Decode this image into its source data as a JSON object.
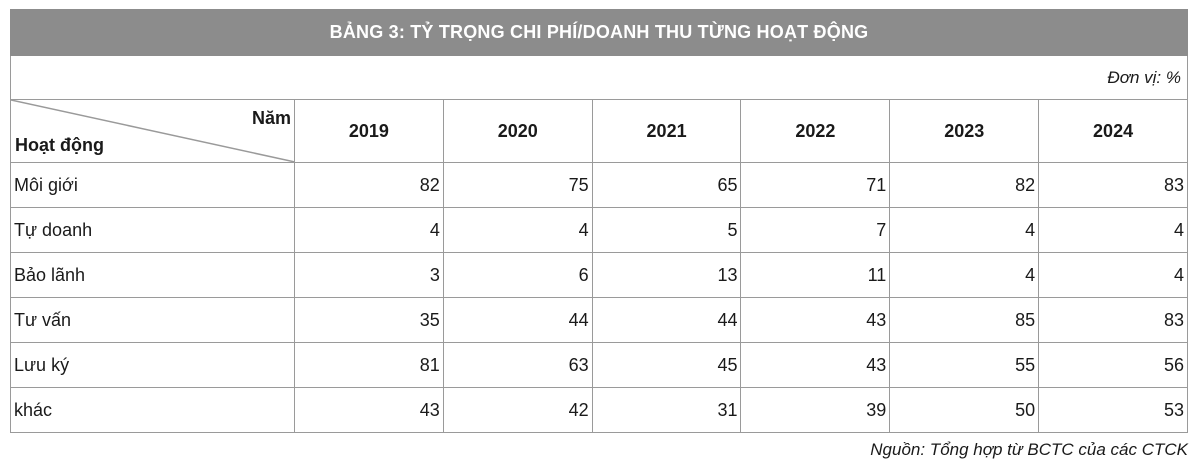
{
  "title": "BẢNG 3: TỶ TRỌNG CHI PHÍ/DOANH THU TỪNG HOẠT ĐỘNG",
  "unit": "Đơn vị: %",
  "header": {
    "corner_top": "Năm",
    "corner_bottom": "Hoạt động",
    "years": [
      "2019",
      "2020",
      "2021",
      "2022",
      "2023",
      "2024"
    ]
  },
  "rows": [
    {
      "label": "Môi giới",
      "values": [
        "82",
        "75",
        "65",
        "71",
        "82",
        "83"
      ]
    },
    {
      "label": "Tự doanh",
      "values": [
        "4",
        "4",
        "5",
        "7",
        "4",
        "4"
      ]
    },
    {
      "label": "Bảo lãnh",
      "values": [
        "3",
        "6",
        "13",
        "11",
        "4",
        "4"
      ]
    },
    {
      "label": "Tư vấn",
      "values": [
        "35",
        "44",
        "44",
        "43",
        "85",
        "83"
      ]
    },
    {
      "label": "Lưu ký",
      "values": [
        "81",
        "63",
        "45",
        "43",
        "55",
        "56"
      ]
    },
    {
      "label": "khác",
      "values": [
        "43",
        "42",
        "31",
        "39",
        "50",
        "53"
      ]
    }
  ],
  "source": "Nguồn: Tổng hợp từ BCTC của các CTCK"
}
